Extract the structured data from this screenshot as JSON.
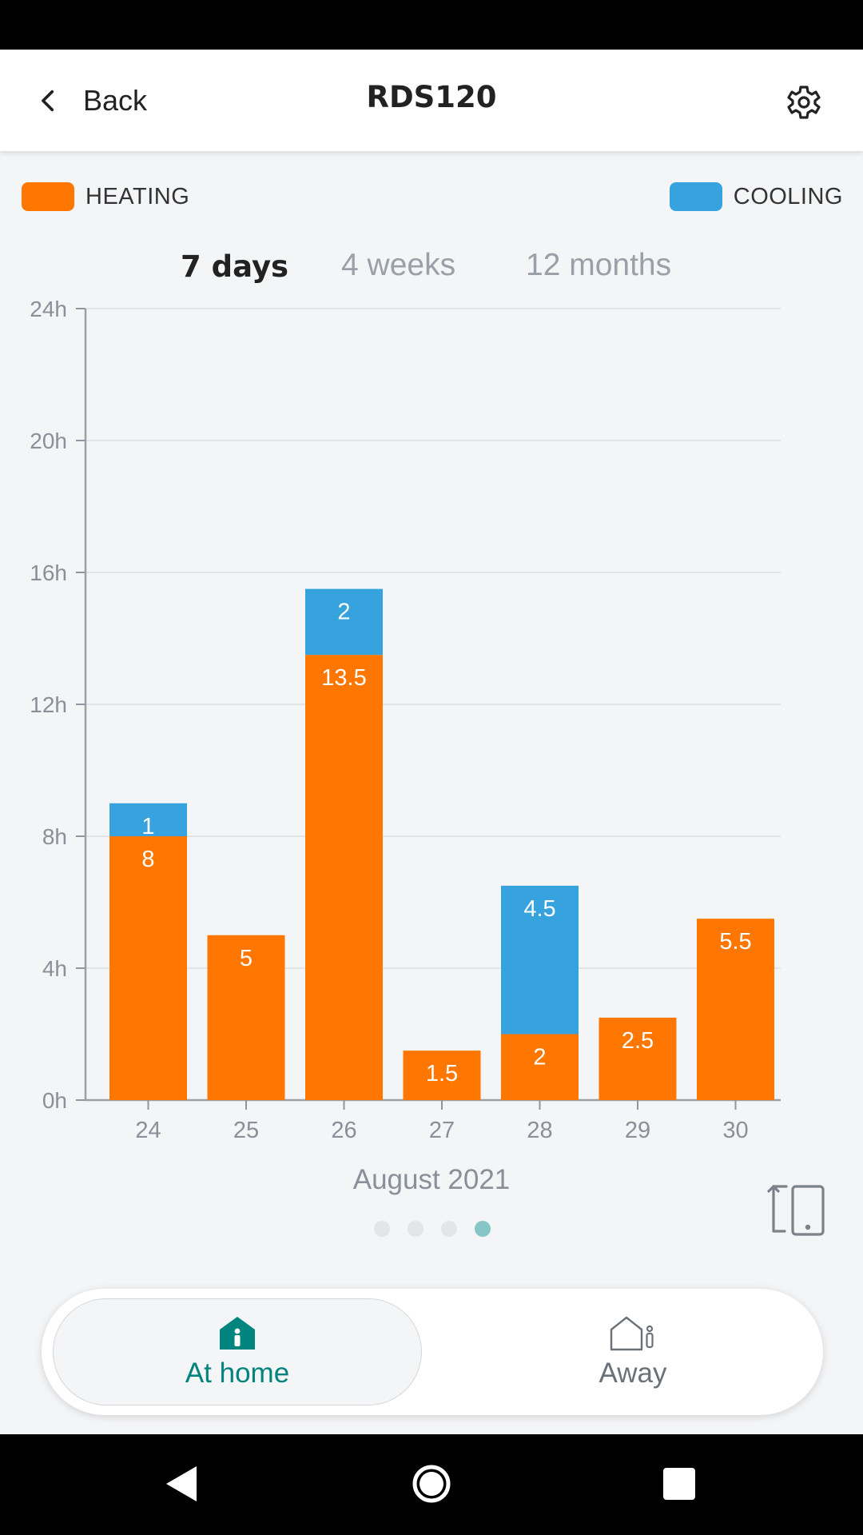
{
  "header": {
    "back_label": "Back",
    "title": "RDS120"
  },
  "legend": {
    "heating": {
      "label": "HEATING",
      "color": "#ff7700"
    },
    "cooling": {
      "label": "COOLING",
      "color": "#36a3de"
    }
  },
  "range_tabs": [
    {
      "label": "7 days",
      "active": true
    },
    {
      "label": "4 weeks",
      "active": false
    },
    {
      "label": "12 months",
      "active": false
    }
  ],
  "chart_data": {
    "type": "bar",
    "stacked": true,
    "categories": [
      "24",
      "25",
      "26",
      "27",
      "28",
      "29",
      "30"
    ],
    "series": [
      {
        "name": "HEATING",
        "color": "#ff7700",
        "values": [
          8,
          5,
          13.5,
          1.5,
          2,
          2.5,
          5.5
        ]
      },
      {
        "name": "COOLING",
        "color": "#36a3de",
        "values": [
          1,
          0,
          2,
          0,
          4.5,
          0,
          0
        ]
      }
    ],
    "y_ticks": [
      "0h",
      "4h",
      "8h",
      "12h",
      "16h",
      "20h",
      "24h"
    ],
    "ylim": [
      0,
      24
    ],
    "grid": true
  },
  "period_label": "August 2021",
  "page_indicator": {
    "count": 4,
    "active_index": 3
  },
  "icons": {
    "back": "chevron-left-icon",
    "settings": "gear-icon",
    "rotate": "rotate-phone-icon",
    "home": "house-person-icon",
    "away": "house-outline-person-icon"
  },
  "mode_switch": {
    "home_label": "At home",
    "away_label": "Away",
    "active": "home",
    "active_color": "#00847e"
  }
}
